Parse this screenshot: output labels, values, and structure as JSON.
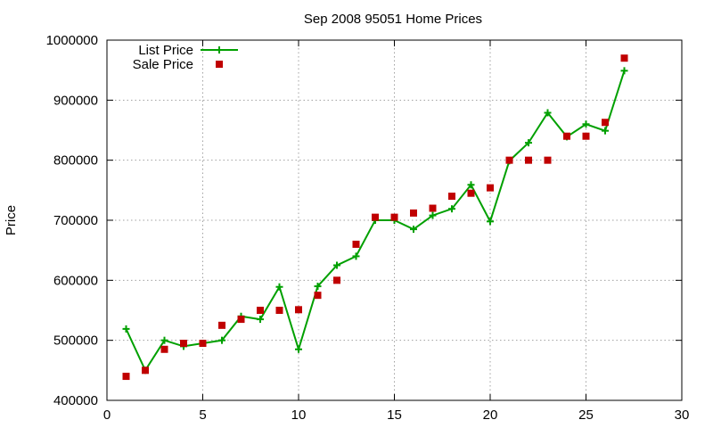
{
  "chart_data": {
    "type": "line",
    "title": "Sep 2008 95051 Home Prices",
    "xlabel": "",
    "ylabel": "Price",
    "xlim": [
      0,
      30
    ],
    "ylim": [
      400000,
      1000000
    ],
    "xticks": [
      0,
      5,
      10,
      15,
      20,
      25,
      30
    ],
    "yticks": [
      400000,
      500000,
      600000,
      700000,
      800000,
      900000,
      1000000
    ],
    "grid": true,
    "legend_position": "top-left",
    "series": [
      {
        "name": "List Price",
        "style": "line-plus",
        "color": "#00a000",
        "x": [
          1,
          2,
          3,
          4,
          5,
          6,
          7,
          8,
          9,
          10,
          11,
          12,
          13,
          14,
          15,
          16,
          17,
          18,
          19,
          20,
          21,
          22,
          23,
          24,
          25,
          26,
          27
        ],
        "y": [
          519000,
          450000,
          500000,
          490000,
          495000,
          500000,
          540000,
          535000,
          589000,
          485000,
          590000,
          625000,
          640000,
          700000,
          700000,
          685000,
          708000,
          719000,
          759000,
          698000,
          799000,
          829000,
          879000,
          839000,
          860000,
          849000,
          949000
        ]
      },
      {
        "name": "Sale Price",
        "style": "points-square",
        "color": "#c00000",
        "x": [
          1,
          2,
          3,
          4,
          5,
          6,
          7,
          8,
          9,
          10,
          11,
          12,
          13,
          14,
          15,
          16,
          17,
          18,
          19,
          20,
          21,
          22,
          23,
          24,
          25,
          26,
          27
        ],
        "y": [
          440000,
          450000,
          485000,
          495000,
          495000,
          525000,
          535000,
          550000,
          550000,
          551000,
          575000,
          600000,
          660000,
          705000,
          705000,
          712000,
          720000,
          740000,
          745000,
          754000,
          800000,
          800000,
          800000,
          840000,
          840000,
          863000,
          970000
        ]
      }
    ]
  }
}
